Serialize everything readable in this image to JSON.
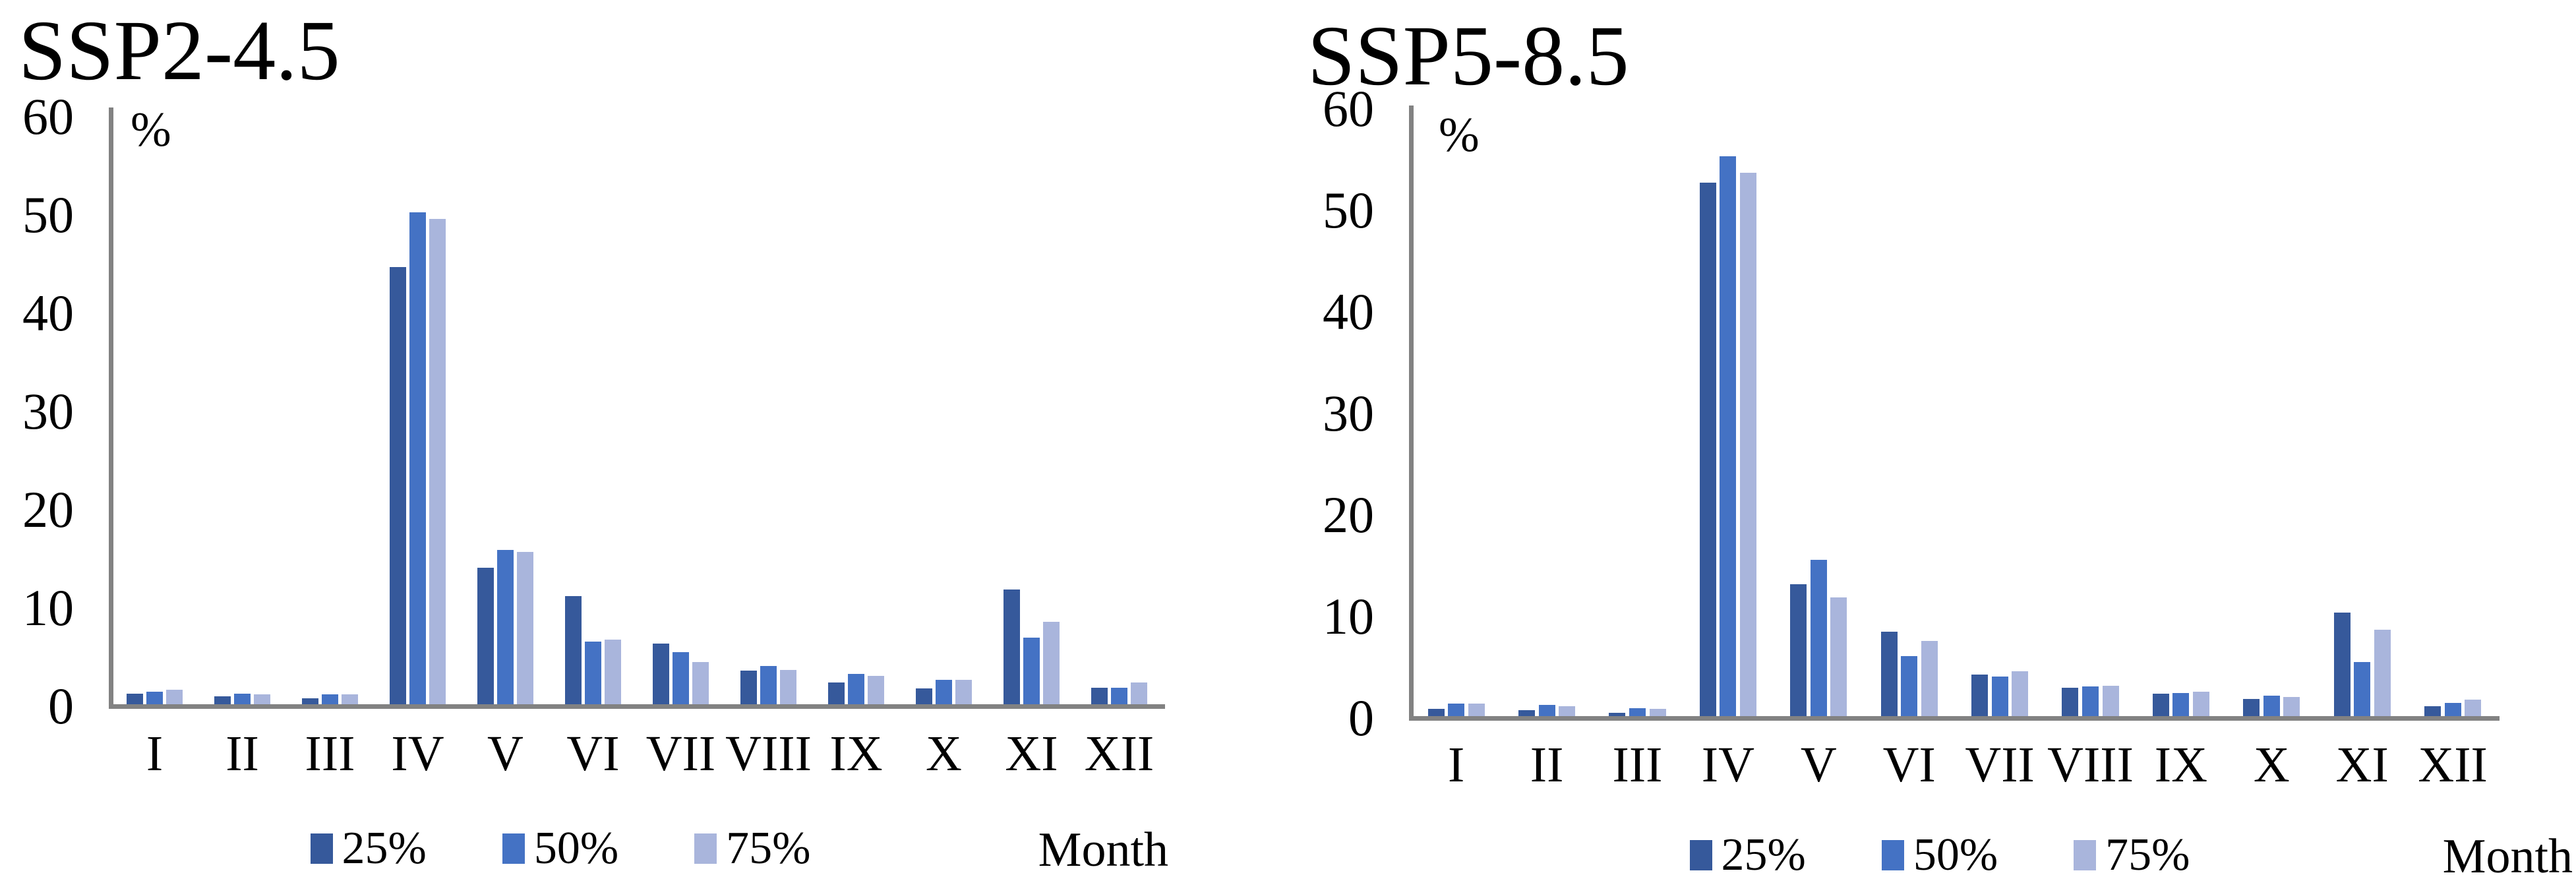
{
  "page": {
    "background": "#ffffff",
    "text_color": "#000000",
    "axis_color": "#828282"
  },
  "chart_data": [
    {
      "id": "ssp2-4.5",
      "type": "bar",
      "title": "SSP2-4.5",
      "unit_label": "%",
      "xlabel": "Month",
      "ylim": [
        0,
        60
      ],
      "yticks": [
        0,
        10,
        20,
        30,
        40,
        50,
        60
      ],
      "grid": false,
      "legend_position": "bottom",
      "categories": [
        "I",
        "II",
        "III",
        "IV",
        "V",
        "VI",
        "VII",
        "VIII",
        "IX",
        "X",
        "XI",
        "XII"
      ],
      "series": [
        {
          "name": "25%",
          "color": "#36599B",
          "values": [
            1.3,
            1.0,
            0.8,
            44.7,
            14.1,
            11.2,
            6.4,
            3.6,
            2.4,
            1.8,
            11.9,
            1.9
          ]
        },
        {
          "name": "50%",
          "color": "#4472C4",
          "values": [
            1.5,
            1.3,
            1.2,
            50.3,
            15.9,
            6.6,
            5.5,
            4.1,
            3.3,
            2.7,
            7.0,
            1.9
          ]
        },
        {
          "name": "75%",
          "color": "#A9B5DC",
          "values": [
            1.7,
            1.2,
            1.2,
            49.6,
            15.7,
            6.8,
            4.5,
            3.7,
            3.1,
            2.7,
            8.6,
            2.4
          ]
        }
      ]
    },
    {
      "id": "ssp5-8.5",
      "type": "bar",
      "title": "SSP5-8.5",
      "unit_label": "%",
      "xlabel": "Month",
      "ylim": [
        0,
        60
      ],
      "yticks": [
        0,
        10,
        20,
        30,
        40,
        50,
        60
      ],
      "grid": false,
      "legend_position": "bottom",
      "categories": [
        "I",
        "II",
        "III",
        "IV",
        "V",
        "VI",
        "VII",
        "VIII",
        "IX",
        "X",
        "XI",
        "XII"
      ],
      "series": [
        {
          "name": "25%",
          "color": "#36599B",
          "values": [
            0.9,
            0.8,
            0.5,
            52.7,
            13.2,
            8.5,
            4.3,
            3.0,
            2.4,
            1.9,
            10.4,
            1.2
          ]
        },
        {
          "name": "50%",
          "color": "#4472C4",
          "values": [
            1.4,
            1.3,
            1.0,
            55.3,
            15.6,
            6.1,
            4.1,
            3.1,
            2.5,
            2.2,
            5.5,
            1.5
          ]
        },
        {
          "name": "75%",
          "color": "#A9B5DC",
          "values": [
            1.4,
            1.2,
            0.9,
            53.7,
            11.9,
            7.6,
            4.6,
            3.2,
            2.6,
            2.1,
            8.7,
            1.8
          ]
        }
      ]
    }
  ]
}
